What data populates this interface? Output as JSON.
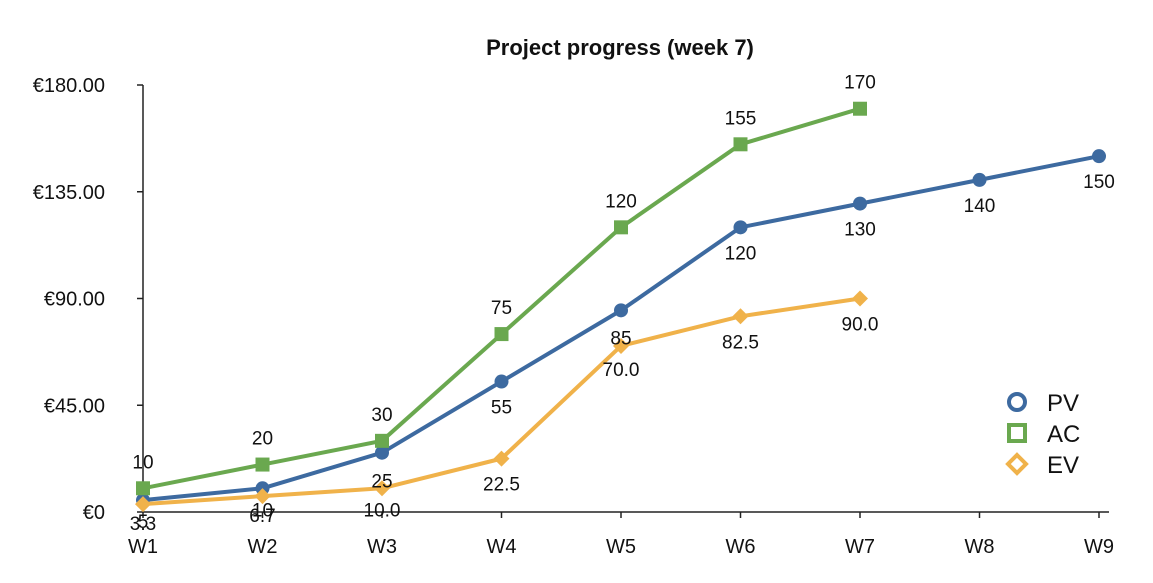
{
  "chart_data": {
    "type": "line",
    "title": "Project progress (week 7)",
    "xlabel": "",
    "ylabel": "",
    "categories": [
      "W1",
      "W2",
      "W3",
      "W4",
      "W5",
      "W6",
      "W7",
      "W8",
      "W9"
    ],
    "ylim": [
      0,
      180
    ],
    "yticks": [
      0,
      45,
      90,
      135,
      180
    ],
    "ytick_labels": [
      "€0",
      "€45.00",
      "€90.00",
      "€135.00",
      "€180.00"
    ],
    "grid": false,
    "legend_position": "right",
    "series": [
      {
        "name": "PV",
        "marker": "circle",
        "color": "#3d6aa0",
        "values": [
          5,
          10,
          25,
          55,
          85,
          120,
          130,
          140,
          150
        ],
        "labels": [
          "5",
          "10",
          "25",
          "55",
          "85",
          "120",
          "130",
          "140",
          "150"
        ]
      },
      {
        "name": "AC",
        "marker": "square",
        "color": "#6aa84f",
        "values": [
          10,
          20,
          30,
          75,
          120,
          155,
          170,
          null,
          null
        ],
        "labels": [
          "10",
          "20",
          "30",
          "75",
          "120",
          "155",
          "170",
          null,
          null
        ]
      },
      {
        "name": "EV",
        "marker": "diamond",
        "color": "#f0b24a",
        "values": [
          3.3,
          6.7,
          10.0,
          22.5,
          70.0,
          82.5,
          90.0,
          null,
          null
        ],
        "labels": [
          "3.3",
          "6.7",
          "10.0",
          "22.5",
          "70.0",
          "82.5",
          "90.0",
          null,
          null
        ]
      }
    ]
  }
}
